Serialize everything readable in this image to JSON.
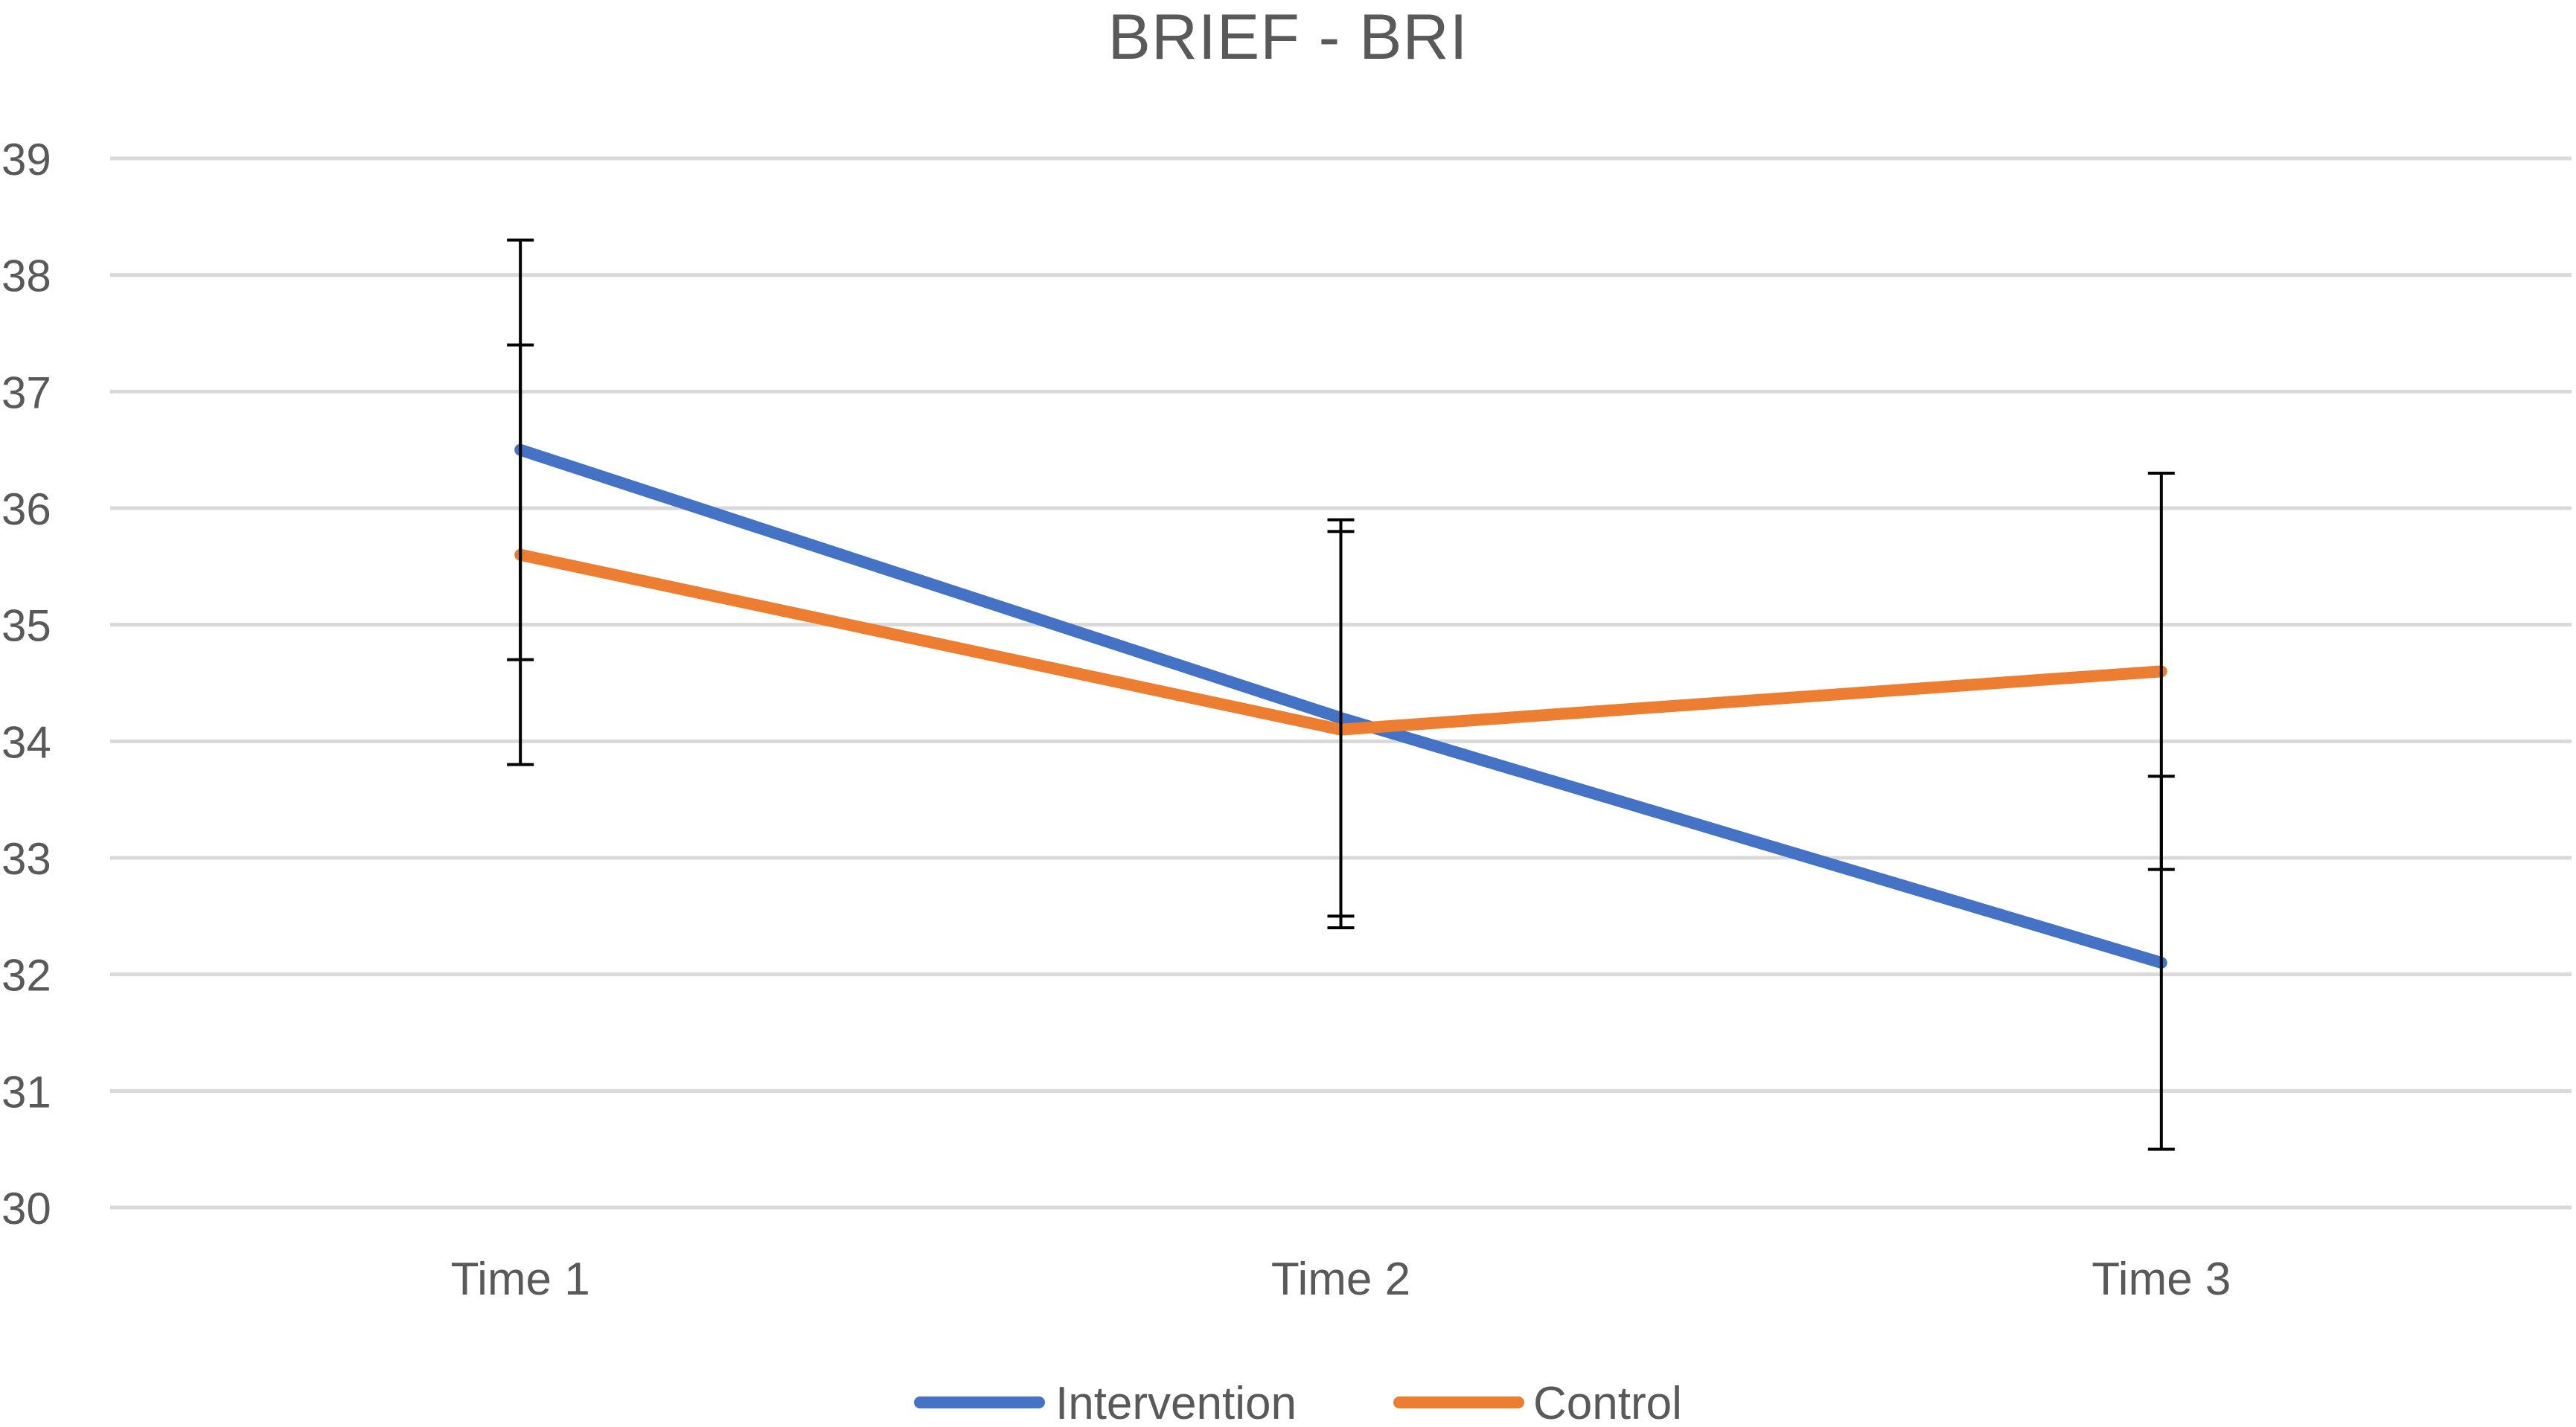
{
  "chart_data": {
    "type": "line",
    "title": "BRIEF - BRI",
    "xlabel": "",
    "ylabel": "",
    "categories": [
      "Time 1",
      "Time 2",
      "Time 3"
    ],
    "ylim": [
      30,
      39
    ],
    "yticks": [
      30,
      31,
      32,
      33,
      34,
      35,
      36,
      37,
      38,
      39
    ],
    "grid": true,
    "legend_position": "bottom",
    "series": [
      {
        "name": "Intervention",
        "color": "#4472C4",
        "values": [
          36.5,
          34.2,
          32.1
        ],
        "error_low": [
          34.7,
          32.5,
          30.5
        ],
        "error_high": [
          38.3,
          35.9,
          33.7
        ]
      },
      {
        "name": "Control",
        "color": "#ED7D31",
        "values": [
          35.6,
          34.1,
          34.6
        ],
        "error_low": [
          33.8,
          32.4,
          32.9
        ],
        "error_high": [
          37.4,
          35.8,
          36.3
        ]
      }
    ]
  }
}
